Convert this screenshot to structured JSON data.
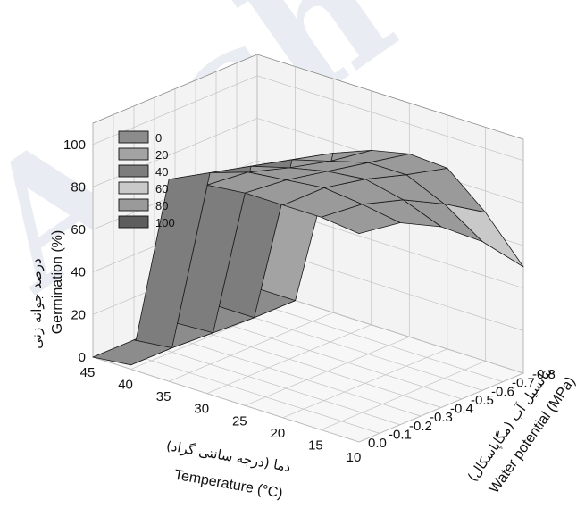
{
  "watermark": "Arch",
  "chart_data": {
    "type": "surface3d",
    "x": {
      "name": "Temperature",
      "label": "Temperature (°C)",
      "label_fa": "دما (درجه سانتی گراد)",
      "ticks": [
        "45",
        "40",
        "35",
        "30",
        "25",
        "20",
        "15",
        "10"
      ],
      "range": [
        10,
        45
      ]
    },
    "y": {
      "name": "Water potential",
      "label": "Water potential (MPa)",
      "label_fa": "پتانسیل آب (مگاپاسکال)",
      "ticks": [
        "0.0",
        "-0.1",
        "-0.2",
        "-0.3",
        "-0.4",
        "-0.5",
        "-0.6",
        "-0.7",
        "-0.8"
      ],
      "range": [
        -0.8,
        0
      ]
    },
    "z": {
      "name": "Germination",
      "label": "Germination (%)",
      "label_fa": "درصد جوانه زنی",
      "ticks": [
        "0",
        "20",
        "40",
        "60",
        "80",
        "100"
      ],
      "range": [
        0,
        100
      ]
    },
    "legend": {
      "placement": "top-left",
      "items": [
        {
          "label": "0",
          "color": "#8c8c8c"
        },
        {
          "label": "20",
          "color": "#a3a3a3"
        },
        {
          "label": "40",
          "color": "#7d7d7d"
        },
        {
          "label": "60",
          "color": "#c9c9c9"
        },
        {
          "label": "80",
          "color": "#9a9a9a"
        },
        {
          "label": "100",
          "color": "#5d5d5d"
        }
      ]
    },
    "grid": true,
    "temperatures": [
      10,
      15,
      20,
      25,
      30,
      35,
      40,
      45
    ],
    "water_potentials": [
      0,
      -0.2,
      -0.4,
      -0.6,
      -0.8
    ],
    "germination": [
      [
        98,
        100,
        100,
        100,
        98,
        95,
        2,
        0
      ],
      [
        95,
        98,
        100,
        98,
        96,
        90,
        2,
        0
      ],
      [
        85,
        92,
        96,
        94,
        90,
        85,
        1,
        0
      ],
      [
        70,
        82,
        90,
        90,
        85,
        80,
        0,
        0
      ],
      [
        50,
        70,
        85,
        86,
        82,
        75,
        0,
        0
      ]
    ]
  }
}
